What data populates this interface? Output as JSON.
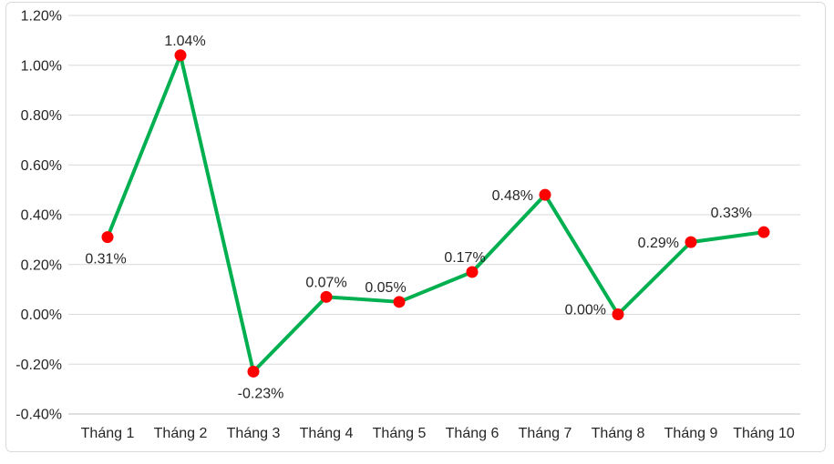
{
  "chart_data": {
    "type": "line",
    "title": "",
    "xlabel": "",
    "ylabel": "",
    "categories": [
      "Tháng 1",
      "Tháng 2",
      "Tháng 3",
      "Tháng 4",
      "Tháng 5",
      "Tháng 6",
      "Tháng 7",
      "Tháng 8",
      "Tháng 9",
      "Tháng 10"
    ],
    "series": [
      {
        "values": [
          0.31,
          1.04,
          -0.23,
          0.07,
          0.05,
          0.17,
          0.48,
          0.0,
          0.29,
          0.33
        ],
        "data_labels": [
          "0.31%",
          "1.04%",
          "-0.23%",
          "0.07%",
          "0.05%",
          "0.17%",
          "0.48%",
          "0.00%",
          "0.29%",
          "0.33%"
        ],
        "line_color": "#00B050",
        "marker_color": "#FF0000"
      }
    ],
    "y_axis": {
      "min": -0.4,
      "max": 1.2,
      "step": 0.2,
      "format": "percent",
      "ticks": [
        {
          "value": 1.2,
          "label": "1.20%"
        },
        {
          "value": 1.0,
          "label": "1.00%"
        },
        {
          "value": 0.8,
          "label": "0.80%"
        },
        {
          "value": 0.6,
          "label": "0.60%"
        },
        {
          "value": 0.4,
          "label": "0.40%"
        },
        {
          "value": 0.2,
          "label": "0.20%"
        },
        {
          "value": 0.0,
          "label": "0.00%"
        },
        {
          "value": -0.2,
          "label": "-0.20%"
        },
        {
          "value": -0.4,
          "label": "-0.40%"
        }
      ]
    },
    "grid": true,
    "legend": "none",
    "colors": {
      "gridline": "#D9D9D9",
      "axis_line": "#BFBFBF",
      "text": "#262626",
      "frame_border": "#D9D9D9",
      "background": "#FFFFFF"
    },
    "layout_hints": {
      "label_placements": [
        "below",
        "above",
        "below",
        "above",
        "above",
        "above",
        "left",
        "left",
        "left",
        "above-left"
      ],
      "label_dx": [
        -2,
        5,
        8,
        0,
        -15,
        -8,
        0,
        0,
        0,
        0
      ],
      "label_dy": [
        0,
        0,
        0,
        0,
        0,
        0,
        0,
        -6,
        0,
        0
      ]
    }
  }
}
